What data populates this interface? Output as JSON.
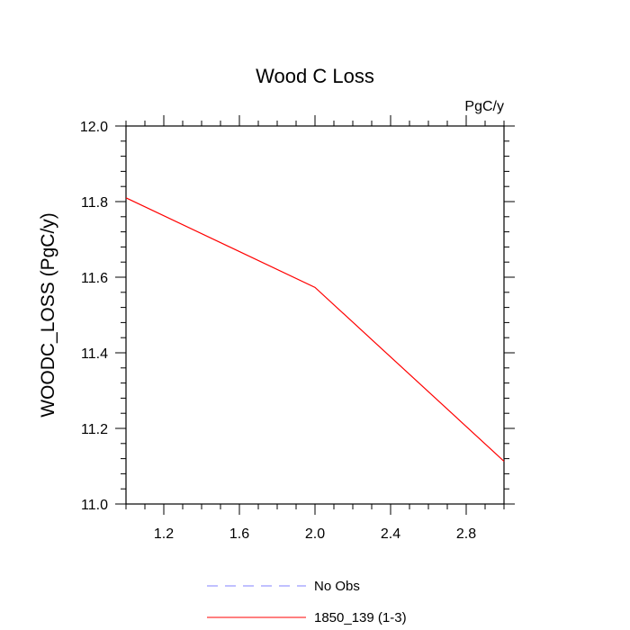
{
  "chart_data": {
    "type": "line",
    "title": "Wood C Loss",
    "units_label": "PgC/y",
    "ylabel": "WOODC_LOSS  (PgC/y)",
    "xlabel": "",
    "xlim": [
      1.0,
      3.0
    ],
    "ylim": [
      11.0,
      12.0
    ],
    "x_ticks": [
      1.2,
      1.6,
      2.0,
      2.4,
      2.8
    ],
    "x_tick_labels": [
      "1.2",
      "1.6",
      "2.0",
      "2.4",
      "2.8"
    ],
    "y_ticks": [
      11.0,
      11.2,
      11.4,
      11.6,
      11.8,
      12.0
    ],
    "y_tick_labels": [
      "11.0",
      "11.2",
      "11.4",
      "11.6",
      "11.8",
      "12.0"
    ],
    "grid": false,
    "legend_position": "bottom",
    "series": [
      {
        "name": "No Obs",
        "color": "#8080ff",
        "dash": "dashed",
        "x": [],
        "y": []
      },
      {
        "name": "1850_139 (1-3)",
        "color": "#ff0000",
        "dash": "solid",
        "x": [
          1,
          2,
          3
        ],
        "y": [
          11.81,
          11.573,
          11.113
        ]
      }
    ]
  }
}
